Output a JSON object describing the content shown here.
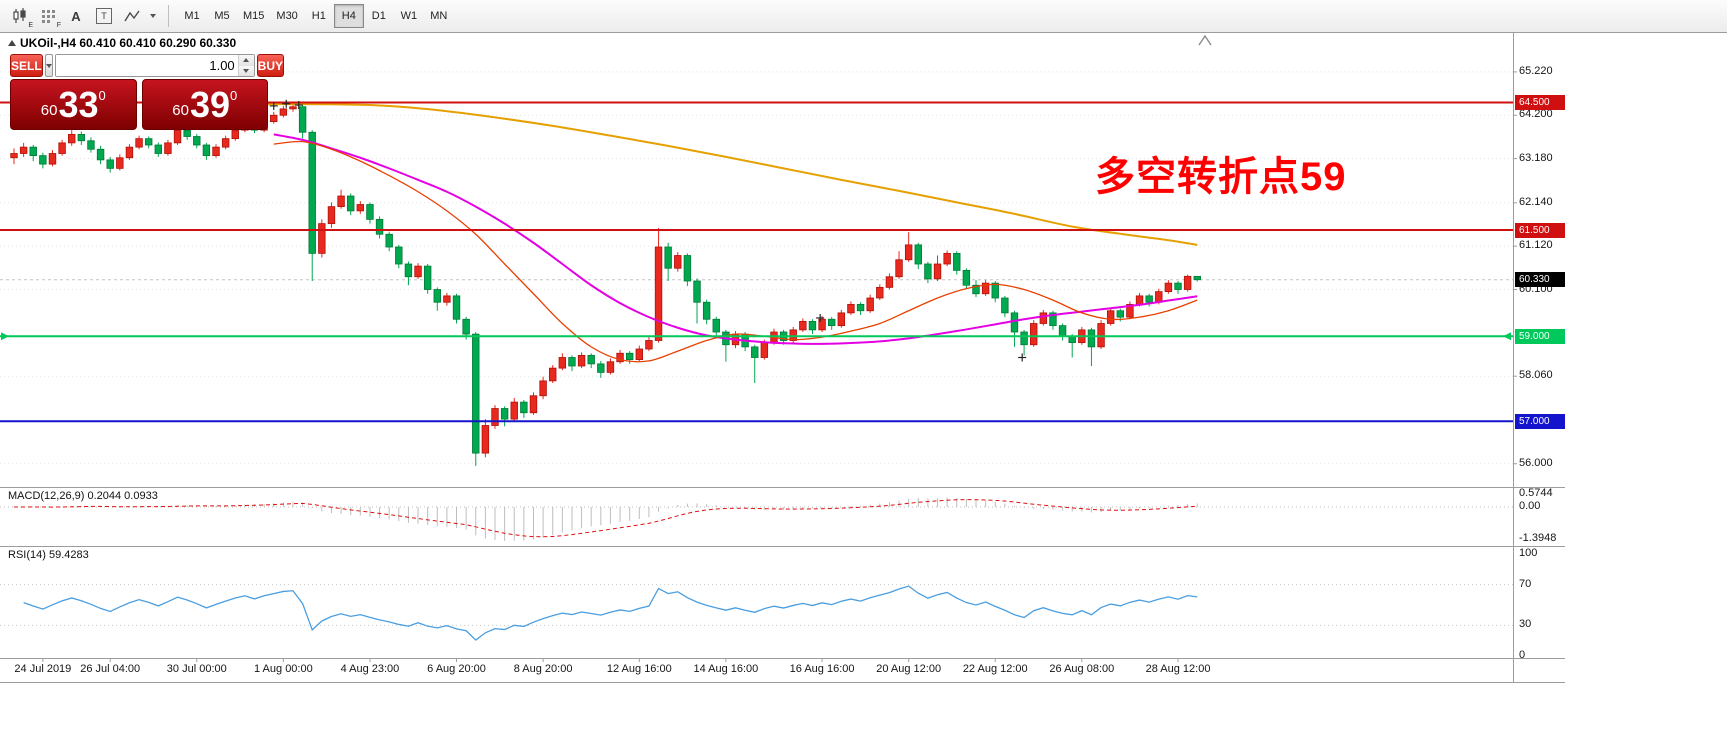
{
  "toolbar": {
    "icons": [
      "candlestick-chart-icon",
      "report-grid-icon",
      "text-tool-icon",
      "label-tool-icon",
      "line-studies-icon"
    ],
    "icon_glyphs": {
      "text_tool": "A",
      "label_tool": "T",
      "candle_sub": "E",
      "grid_sub": "F"
    },
    "timeframes": [
      "M1",
      "M5",
      "M15",
      "M30",
      "H1",
      "H4",
      "D1",
      "W1",
      "MN"
    ],
    "active_timeframe": "H4"
  },
  "trade_panel": {
    "sell_label": "SELL",
    "buy_label": "BUY",
    "volume": "1.00",
    "sell_price": {
      "prefix": "60",
      "big": "33",
      "sup": "0",
      "full": "60.330"
    },
    "buy_price": {
      "prefix": "60",
      "big": "39",
      "sup": "0",
      "full": "60.390"
    }
  },
  "chart_data": {
    "type": "candlestick",
    "symbol": "UKOil-",
    "timeframe": "H4",
    "ohlc_header": "UKOil-,H4 60.410 60.410 60.290 60.330",
    "annotation": {
      "text": "多空转折点59",
      "color": "#FF0000"
    },
    "price_ticks": [
      {
        "label": "65.220",
        "value": 65.22
      },
      {
        "label": "64.200",
        "value": 64.2
      },
      {
        "label": "63.180",
        "value": 63.18
      },
      {
        "label": "62.140",
        "value": 62.14
      },
      {
        "label": "61.120",
        "value": 61.12
      },
      {
        "label": "60.100",
        "value": 60.1
      },
      {
        "label": "58.060",
        "value": 58.06
      },
      {
        "label": "56.000",
        "value": 56.0
      }
    ],
    "hlines": [
      {
        "label": "64.500",
        "value": 64.5,
        "color": "#D01010"
      },
      {
        "label": "61.500",
        "value": 61.5,
        "color": "#D01010"
      },
      {
        "label": "59.000",
        "value": 59.0,
        "color": "#00C85A"
      },
      {
        "label": "57.000",
        "value": 57.0,
        "color": "#1414CC"
      }
    ],
    "current_price": {
      "label": "60.330",
      "value": 60.33
    },
    "time_labels": [
      {
        "i": 3,
        "label": "24 Jul 2019"
      },
      {
        "i": 10,
        "label": "26 Jul 04:00"
      },
      {
        "i": 19,
        "label": "30 Jul 00:00"
      },
      {
        "i": 28,
        "label": "1 Aug 00:00"
      },
      {
        "i": 37,
        "label": "4 Aug 23:00"
      },
      {
        "i": 46,
        "label": "6 Aug 20:00"
      },
      {
        "i": 55,
        "label": "8 Aug 20:00"
      },
      {
        "i": 65,
        "label": "12 Aug 16:00"
      },
      {
        "i": 74,
        "label": "14 Aug 16:00"
      },
      {
        "i": 84,
        "label": "16 Aug 16:00"
      },
      {
        "i": 93,
        "label": "20 Aug 12:00"
      },
      {
        "i": 102,
        "label": "22 Aug 12:00"
      },
      {
        "i": 111,
        "label": "26 Aug 08:00"
      },
      {
        "i": 121,
        "label": "28 Aug 12:00"
      }
    ],
    "candles": [
      [
        63.2,
        63.42,
        63.05,
        63.3
      ],
      [
        63.3,
        63.55,
        63.22,
        63.45
      ],
      [
        63.45,
        63.5,
        63.12,
        63.25
      ],
      [
        63.25,
        63.32,
        62.95,
        63.05
      ],
      [
        63.05,
        63.38,
        63.0,
        63.3
      ],
      [
        63.3,
        63.62,
        63.25,
        63.55
      ],
      [
        63.55,
        63.85,
        63.48,
        63.75
      ],
      [
        63.75,
        63.82,
        63.5,
        63.6
      ],
      [
        63.6,
        63.68,
        63.32,
        63.4
      ],
      [
        63.4,
        63.48,
        63.05,
        63.15
      ],
      [
        63.15,
        63.22,
        62.85,
        62.95
      ],
      [
        62.95,
        63.28,
        62.9,
        63.2
      ],
      [
        63.2,
        63.52,
        63.15,
        63.45
      ],
      [
        63.45,
        63.72,
        63.4,
        63.65
      ],
      [
        63.65,
        63.7,
        63.42,
        63.5
      ],
      [
        63.5,
        63.56,
        63.22,
        63.3
      ],
      [
        63.3,
        63.62,
        63.25,
        63.55
      ],
      [
        63.55,
        63.92,
        63.5,
        63.85
      ],
      [
        63.85,
        63.9,
        63.62,
        63.7
      ],
      [
        63.7,
        63.76,
        63.42,
        63.5
      ],
      [
        63.5,
        63.55,
        63.15,
        63.25
      ],
      [
        63.25,
        63.52,
        63.2,
        63.45
      ],
      [
        63.45,
        63.72,
        63.4,
        63.65
      ],
      [
        63.65,
        63.92,
        63.6,
        63.85
      ],
      [
        63.85,
        64.08,
        63.8,
        64.0
      ],
      [
        64.0,
        64.05,
        63.78,
        63.85
      ],
      [
        63.85,
        64.12,
        63.8,
        64.05
      ],
      [
        64.05,
        64.28,
        64.0,
        64.2
      ],
      [
        64.2,
        64.42,
        64.15,
        64.35
      ],
      [
        64.35,
        64.48,
        64.28,
        64.4
      ],
      [
        64.4,
        64.45,
        63.65,
        63.8
      ],
      [
        63.8,
        63.85,
        60.3,
        60.95
      ],
      [
        60.95,
        61.75,
        60.85,
        61.65
      ],
      [
        61.65,
        62.15,
        61.55,
        62.05
      ],
      [
        62.05,
        62.45,
        62.0,
        62.3
      ],
      [
        62.3,
        62.36,
        61.85,
        61.95
      ],
      [
        61.95,
        62.18,
        61.88,
        62.1
      ],
      [
        62.1,
        62.15,
        61.65,
        61.75
      ],
      [
        61.75,
        61.82,
        61.3,
        61.4
      ],
      [
        61.4,
        61.46,
        61.0,
        61.1
      ],
      [
        61.1,
        61.15,
        60.6,
        60.7
      ],
      [
        60.7,
        60.76,
        60.2,
        60.4
      ],
      [
        60.4,
        60.72,
        60.35,
        60.65
      ],
      [
        60.65,
        60.7,
        60.0,
        60.1
      ],
      [
        60.1,
        60.15,
        59.6,
        59.8
      ],
      [
        59.8,
        60.02,
        59.72,
        59.95
      ],
      [
        59.95,
        60.0,
        59.3,
        59.4
      ],
      [
        59.4,
        59.46,
        58.92,
        59.05
      ],
      [
        59.05,
        59.1,
        55.95,
        56.25
      ],
      [
        56.25,
        57.05,
        56.15,
        56.9
      ],
      [
        56.9,
        57.38,
        56.82,
        57.3
      ],
      [
        57.3,
        57.35,
        56.88,
        57.05
      ],
      [
        57.05,
        57.55,
        57.0,
        57.45
      ],
      [
        57.45,
        57.5,
        57.08,
        57.2
      ],
      [
        57.2,
        57.68,
        57.15,
        57.6
      ],
      [
        57.6,
        58.05,
        57.52,
        57.95
      ],
      [
        57.95,
        58.32,
        57.9,
        58.25
      ],
      [
        58.25,
        58.6,
        58.2,
        58.5
      ],
      [
        58.5,
        58.55,
        58.18,
        58.3
      ],
      [
        58.3,
        58.62,
        58.25,
        58.55
      ],
      [
        58.55,
        58.6,
        58.25,
        58.35
      ],
      [
        58.35,
        58.42,
        58.02,
        58.15
      ],
      [
        58.15,
        58.48,
        58.1,
        58.4
      ],
      [
        58.4,
        58.68,
        58.35,
        58.6
      ],
      [
        58.6,
        58.65,
        58.35,
        58.45
      ],
      [
        58.45,
        58.78,
        58.4,
        58.7
      ],
      [
        58.7,
        58.98,
        58.65,
        58.9
      ],
      [
        58.9,
        61.55,
        58.85,
        61.1
      ],
      [
        61.1,
        61.2,
        60.3,
        60.6
      ],
      [
        60.6,
        60.98,
        60.52,
        60.9
      ],
      [
        60.9,
        60.95,
        60.18,
        60.3
      ],
      [
        60.3,
        60.36,
        59.3,
        59.8
      ],
      [
        59.8,
        59.86,
        59.28,
        59.4
      ],
      [
        59.4,
        59.46,
        59.0,
        59.1
      ],
      [
        59.1,
        59.15,
        58.4,
        58.8
      ],
      [
        58.8,
        59.12,
        58.72,
        59.05
      ],
      [
        59.05,
        59.1,
        58.65,
        58.75
      ],
      [
        58.75,
        58.8,
        57.9,
        58.5
      ],
      [
        58.5,
        58.92,
        58.45,
        58.85
      ],
      [
        58.85,
        59.18,
        58.8,
        59.1
      ],
      [
        59.1,
        59.15,
        58.8,
        58.9
      ],
      [
        58.9,
        59.22,
        58.85,
        59.15
      ],
      [
        59.15,
        59.42,
        59.1,
        59.35
      ],
      [
        59.35,
        59.4,
        59.05,
        59.15
      ],
      [
        59.15,
        59.48,
        59.1,
        59.4
      ],
      [
        59.4,
        59.45,
        59.15,
        59.25
      ],
      [
        59.25,
        59.62,
        59.2,
        59.55
      ],
      [
        59.55,
        59.82,
        59.5,
        59.75
      ],
      [
        59.75,
        59.8,
        59.5,
        59.6
      ],
      [
        59.6,
        59.98,
        59.55,
        59.9
      ],
      [
        59.9,
        60.22,
        59.85,
        60.15
      ],
      [
        60.15,
        60.48,
        60.1,
        60.4
      ],
      [
        60.4,
        61.0,
        60.35,
        60.8
      ],
      [
        60.8,
        61.45,
        60.75,
        61.15
      ],
      [
        61.15,
        61.2,
        60.58,
        60.7
      ],
      [
        60.7,
        60.75,
        60.25,
        60.35
      ],
      [
        60.35,
        60.9,
        60.3,
        60.7
      ],
      [
        60.7,
        61.02,
        60.65,
        60.95
      ],
      [
        60.95,
        61.0,
        60.45,
        60.55
      ],
      [
        60.55,
        60.6,
        60.1,
        60.2
      ],
      [
        60.2,
        60.32,
        59.92,
        60.0
      ],
      [
        60.0,
        60.32,
        59.95,
        60.25
      ],
      [
        60.25,
        60.3,
        59.8,
        59.9
      ],
      [
        59.9,
        59.95,
        59.45,
        59.55
      ],
      [
        59.55,
        59.6,
        58.75,
        59.1
      ],
      [
        59.1,
        59.15,
        58.55,
        58.8
      ],
      [
        58.8,
        59.38,
        58.75,
        59.3
      ],
      [
        59.3,
        59.62,
        59.25,
        59.55
      ],
      [
        59.55,
        59.6,
        59.15,
        59.25
      ],
      [
        59.25,
        59.3,
        58.9,
        59.0
      ],
      [
        59.0,
        59.05,
        58.5,
        58.85
      ],
      [
        58.85,
        59.22,
        58.8,
        59.15
      ],
      [
        59.15,
        59.2,
        58.3,
        58.75
      ],
      [
        58.75,
        59.38,
        58.7,
        59.3
      ],
      [
        59.3,
        59.66,
        59.25,
        59.6
      ],
      [
        59.6,
        59.65,
        59.35,
        59.45
      ],
      [
        59.45,
        59.82,
        59.4,
        59.75
      ],
      [
        59.75,
        60.02,
        59.7,
        59.95
      ],
      [
        59.95,
        60.0,
        59.7,
        59.8
      ],
      [
        59.8,
        60.12,
        59.75,
        60.05
      ],
      [
        60.05,
        60.32,
        60.0,
        60.25
      ],
      [
        60.25,
        60.3,
        60.0,
        60.1
      ],
      [
        60.1,
        60.45,
        60.05,
        60.41
      ],
      [
        60.41,
        60.41,
        60.29,
        60.33
      ]
    ],
    "moving_averages": [
      {
        "name": "slow",
        "color": "#E5A000",
        "width": 2,
        "points": [
          [
            26,
            64.46
          ],
          [
            32,
            64.46
          ],
          [
            38,
            64.43
          ],
          [
            44,
            64.32
          ],
          [
            50,
            64.15
          ],
          [
            56,
            63.95
          ],
          [
            62,
            63.72
          ],
          [
            68,
            63.48
          ],
          [
            74,
            63.22
          ],
          [
            80,
            62.95
          ],
          [
            86,
            62.68
          ],
          [
            92,
            62.42
          ],
          [
            98,
            62.15
          ],
          [
            104,
            61.88
          ],
          [
            110,
            61.58
          ],
          [
            116,
            61.38
          ],
          [
            120,
            61.26
          ],
          [
            123,
            61.15
          ]
        ]
      },
      {
        "name": "medium",
        "color": "#E400E4",
        "width": 2,
        "points": [
          [
            27,
            63.75
          ],
          [
            30,
            63.62
          ],
          [
            33,
            63.42
          ],
          [
            36,
            63.2
          ],
          [
            39,
            62.95
          ],
          [
            42,
            62.68
          ],
          [
            45,
            62.4
          ],
          [
            48,
            62.05
          ],
          [
            51,
            61.65
          ],
          [
            54,
            61.2
          ],
          [
            57,
            60.7
          ],
          [
            60,
            60.2
          ],
          [
            63,
            59.78
          ],
          [
            66,
            59.45
          ],
          [
            69,
            59.2
          ],
          [
            72,
            59.02
          ],
          [
            75,
            58.92
          ],
          [
            78,
            58.86
          ],
          [
            81,
            58.83
          ],
          [
            84,
            58.82
          ],
          [
            87,
            58.84
          ],
          [
            90,
            58.88
          ],
          [
            93,
            58.95
          ],
          [
            96,
            59.05
          ],
          [
            99,
            59.16
          ],
          [
            102,
            59.28
          ],
          [
            105,
            59.4
          ],
          [
            108,
            59.5
          ],
          [
            111,
            59.58
          ],
          [
            114,
            59.66
          ],
          [
            117,
            59.74
          ],
          [
            120,
            59.84
          ],
          [
            123,
            59.94
          ]
        ]
      },
      {
        "name": "fast",
        "color": "#E84000",
        "width": 1.3,
        "points": [
          [
            27,
            63.52
          ],
          [
            30,
            63.58
          ],
          [
            33,
            63.4
          ],
          [
            36,
            63.12
          ],
          [
            39,
            62.78
          ],
          [
            42,
            62.4
          ],
          [
            45,
            61.95
          ],
          [
            48,
            61.4
          ],
          [
            51,
            60.7
          ],
          [
            54,
            60.0
          ],
          [
            57,
            59.3
          ],
          [
            60,
            58.75
          ],
          [
            63,
            58.45
          ],
          [
            66,
            58.42
          ],
          [
            69,
            58.65
          ],
          [
            72,
            58.9
          ],
          [
            75,
            59.05
          ],
          [
            78,
            59.0
          ],
          [
            81,
            58.92
          ],
          [
            84,
            58.98
          ],
          [
            87,
            59.12
          ],
          [
            90,
            59.3
          ],
          [
            93,
            59.6
          ],
          [
            96,
            59.9
          ],
          [
            99,
            60.12
          ],
          [
            102,
            60.22
          ],
          [
            105,
            60.1
          ],
          [
            108,
            59.85
          ],
          [
            111,
            59.55
          ],
          [
            114,
            59.4
          ],
          [
            117,
            59.45
          ],
          [
            120,
            59.6
          ],
          [
            123,
            59.85
          ]
        ]
      }
    ],
    "markers": [
      [
        27,
        64.42
      ],
      [
        28.3,
        64.47
      ],
      [
        29.6,
        64.44
      ],
      [
        83.8,
        59.43
      ],
      [
        104.8,
        58.5
      ]
    ],
    "macd": {
      "label": "MACD(12,26,9) 0.2044 0.0933",
      "main": 0.2044,
      "signal": 0.0933,
      "scale": [
        {
          "label": "0.5744",
          "value": 0.5744
        },
        {
          "label": "0.00",
          "value": 0
        },
        {
          "label": "-1.3948",
          "value": -1.3948
        }
      ]
    },
    "rsi": {
      "label": "RSI(14) 59.4283",
      "value": 59.4283,
      "levels": [
        70,
        30
      ],
      "scale": [
        {
          "label": "100",
          "value": 100
        },
        {
          "label": "70",
          "value": 70
        },
        {
          "label": "30",
          "value": 30
        },
        {
          "label": "0",
          "value": 0
        }
      ]
    }
  }
}
